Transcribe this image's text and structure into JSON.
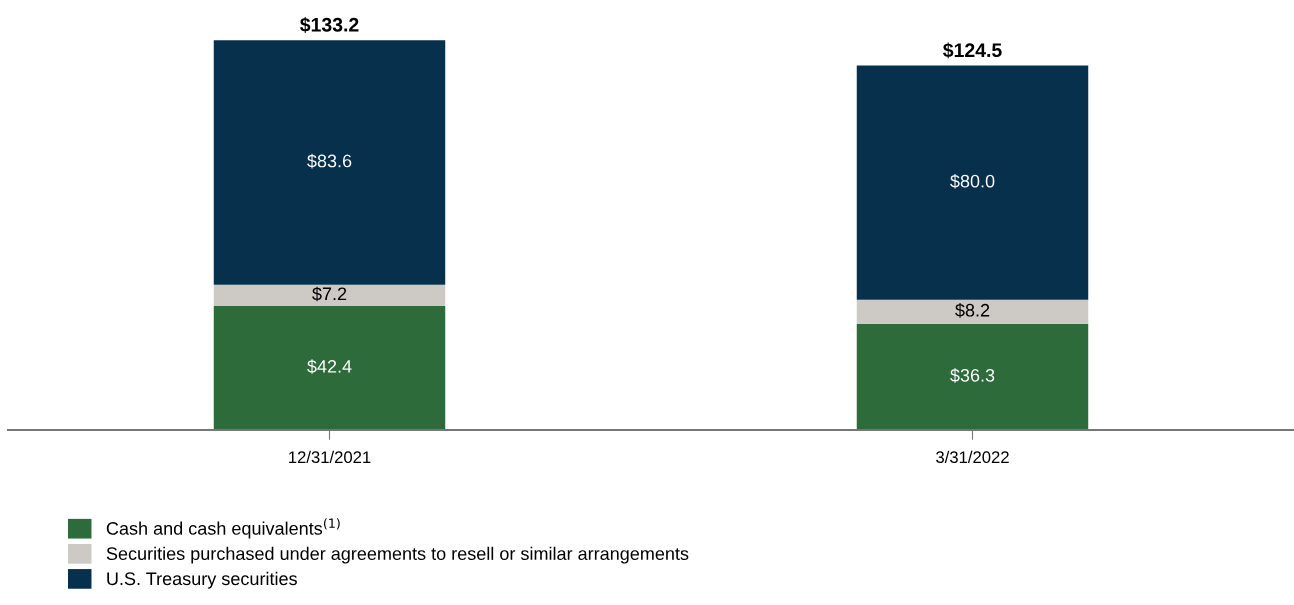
{
  "chart_data": {
    "type": "bar",
    "stacked": true,
    "categories": [
      "12/31/2021",
      "3/31/2022"
    ],
    "series": [
      {
        "name": "Cash and cash equivalents$^{(1)}$",
        "color": "#2e6b3a",
        "values": [
          42.4,
          36.3
        ],
        "value_labels": [
          "$42.4",
          "$36.3"
        ]
      },
      {
        "name": "Securities purchased under agreements to resell or similar arrangements",
        "color": "#cdc9c4",
        "values": [
          7.2,
          8.2
        ],
        "value_labels": [
          "$7.2",
          "$8.2"
        ]
      },
      {
        "name": "U.S. Treasury securities",
        "color": "#07304d",
        "values": [
          83.6,
          80.0
        ],
        "value_labels": [
          "$83.6",
          "$80.0"
        ]
      }
    ],
    "totals": [
      "$133.2",
      "$124.5"
    ],
    "legend": "bottom left",
    "grid": false
  }
}
